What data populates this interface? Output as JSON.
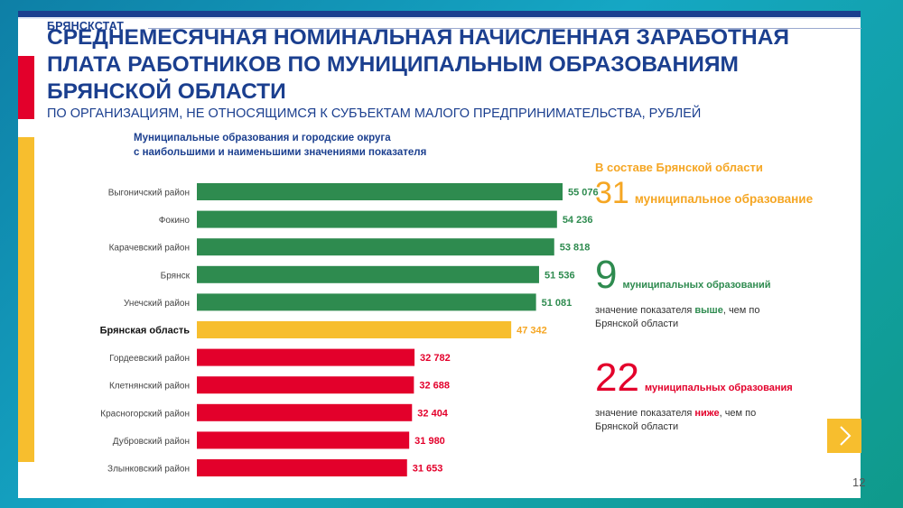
{
  "header": {
    "brand": "БРЯНСКСТАТ",
    "title": "СРЕДНЕМЕСЯЧНАЯ НОМИНАЛЬНАЯ НАЧИСЛЕННАЯ ЗАРАБОТНАЯ ПЛАТА РАБОТНИКОВ ПО МУНИЦИПАЛЬНЫМ ОБРАЗОВАНИЯМ БРЯНСКОЙ ОБЛАСТИ",
    "subtitle": "ПО ОРГАНИЗАЦИЯМ, НЕ ОТНОСЯЩИМСЯ К СУБЪЕКТАМ МАЛОГО ПРЕДПРИНИМАТЕЛЬСТВА, РУБЛЕЙ"
  },
  "chart_title_line1": "Муниципальные образования и городские округа",
  "chart_title_line2": "с наибольшими и наименьшими значениями показателя",
  "chart_data": {
    "type": "bar",
    "orientation": "horizontal",
    "title": "Муниципальные образования и городские округа с наибольшими и наименьшими значениями показателя",
    "categories": [
      "Выгоничский район",
      "Фокино",
      "Карачевский район",
      "Брянск",
      "Унечский район",
      "Брянская область",
      "Гордеевский район",
      "Клетнянский район",
      "Красногорский район",
      "Дубровский район",
      "Злынковский район"
    ],
    "values": [
      55076,
      54236,
      53818,
      51536,
      51081,
      47342,
      32782,
      32688,
      32404,
      31980,
      31653
    ],
    "value_labels": [
      "55 076",
      "54 236",
      "53 818",
      "51 536",
      "51 081",
      "47 342",
      "32 782",
      "32 688",
      "32 404",
      "31 980",
      "31 653"
    ],
    "groups": [
      "high",
      "high",
      "high",
      "high",
      "high",
      "region",
      "low",
      "low",
      "low",
      "low",
      "low"
    ],
    "colors": {
      "high": "#2e8b4f",
      "region": "#f7be2e",
      "low": "#e3002b"
    },
    "value_label_colors": {
      "high": "#2e8b4f",
      "region": "#f5a623",
      "low": "#e3002b"
    },
    "xlim": [
      0,
      60000
    ],
    "grid": false,
    "legend": "none"
  },
  "info": {
    "heading": "В составе Брянской области",
    "total_num": "31",
    "total_text": "муниципальное образование",
    "above_num": "9",
    "above_text": "муниципальных образований",
    "above_note_pre": "значение показателя ",
    "above_note_hl": "выше",
    "above_note_post": ", чем по Брянской области",
    "below_num": "22",
    "below_text": "муниципальных образования",
    "below_note_pre": "значение показателя ",
    "below_note_hl": "ниже",
    "below_note_post": ", чем по Брянской области"
  },
  "nav": {
    "next_icon": "chevron-right-icon"
  },
  "page_number": "12"
}
